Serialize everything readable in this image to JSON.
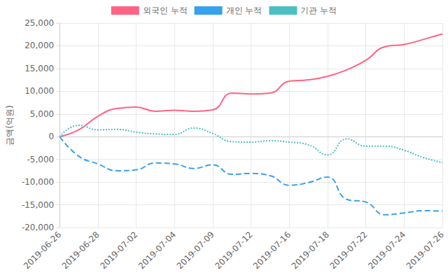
{
  "chart_data": {
    "type": "line",
    "y_label": "금액(억원)",
    "categories": [
      "2019-06-26",
      null,
      "2019-06-28",
      null,
      "2019-07-02",
      null,
      "2019-07-04",
      null,
      "2019-07-09",
      null,
      "2019-07-12",
      null,
      "2019-07-16",
      null,
      "2019-07-18",
      null,
      "2019-07-22",
      null,
      "2019-07-24",
      null,
      "2019-07-26"
    ],
    "series": [
      {
        "name": "외국인 누적",
        "color": "#ff6384",
        "line_style": "solid",
        "values": [
          0,
          1500,
          4500,
          6200,
          6500,
          5600,
          5800,
          5600,
          5900,
          9600,
          9400,
          9600,
          12200,
          12500,
          13300,
          14700,
          16800,
          19800,
          20300,
          21400,
          22600
        ]
      },
      {
        "name": "개인 누적",
        "color": "#36a2eb",
        "line_style": "dashed",
        "values": [
          0,
          -4300,
          -6000,
          -7500,
          -7300,
          -5800,
          -6000,
          -7000,
          -6200,
          -8300,
          -8100,
          -8600,
          -10700,
          -10100,
          -8900,
          -13800,
          -14400,
          -17200,
          -16800,
          -16300,
          -16400
        ]
      },
      {
        "name": "기관 누적",
        "color": "#4bc0c0",
        "line_style": "dotted",
        "values": [
          0,
          2500,
          1500,
          1600,
          1000,
          600,
          500,
          1900,
          700,
          -1100,
          -1200,
          -900,
          -1200,
          -1800,
          -4000,
          -500,
          -2100,
          -2100,
          -3000,
          -4600,
          -5700
        ]
      }
    ],
    "ylim": [
      -20000,
      25000
    ],
    "yticks": [
      -20000,
      -15000,
      -10000,
      -5000,
      0,
      5000,
      10000,
      15000,
      20000,
      25000
    ],
    "grid": true,
    "legend": "top"
  }
}
